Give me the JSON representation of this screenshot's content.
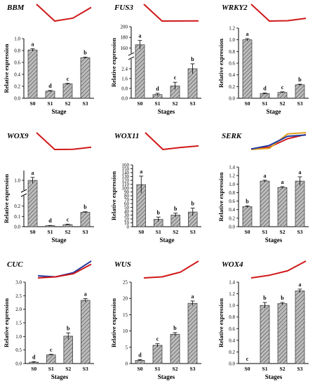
{
  "colors": {
    "trend_red": "#d01818",
    "trend_blue": "#1f3aa0",
    "trend_gold": "#e0a020",
    "bar_fill": "#8c8c8c",
    "axis": "#000000"
  },
  "chart_data": [
    {
      "type": "bar",
      "gene": "BBM",
      "xlabel": "Stage",
      "ylabel": "Relative expression",
      "categories": [
        "S0",
        "S1",
        "S2",
        "S3"
      ],
      "values": [
        0.81,
        0.12,
        0.24,
        0.68
      ],
      "errors": [
        0.02,
        0.01,
        0.01,
        0.01
      ],
      "sig": [
        "a",
        "d",
        "c",
        "b"
      ],
      "ylim": [
        0,
        1.0
      ],
      "yticks": [
        "0.0",
        "0.2",
        "0.4",
        "0.6",
        "0.8",
        "1.0"
      ],
      "trend": [
        {
          "color": "red",
          "values": [
            0.81,
            0.12,
            0.24,
            0.68
          ]
        }
      ]
    },
    {
      "type": "bar",
      "gene": "FUS3",
      "xlabel": "Stages",
      "ylabel": "Relative expression",
      "categories": [
        "S0",
        "S1",
        "S2",
        "S3"
      ],
      "values": [
        166,
        0.3,
        1.0,
        2.4
      ],
      "errors": [
        8,
        0.1,
        0.3,
        0.4
      ],
      "sig": [
        "a",
        "d",
        "c",
        "b"
      ],
      "broken_axis": true,
      "ylim_lower": [
        0,
        3.2
      ],
      "ylim_upper": [
        150,
        200
      ],
      "yticks": [
        "0.0",
        "0.8",
        "1.6",
        "2.4",
        "160",
        "180",
        "200"
      ],
      "trend": [
        {
          "color": "red",
          "values": [
            166,
            0.3,
            1.0,
            2.4
          ]
        }
      ]
    },
    {
      "type": "bar",
      "gene": "WRKY2",
      "xlabel": "Stage",
      "ylabel": "Relative expression",
      "categories": [
        "S0",
        "S1",
        "S2",
        "S3"
      ],
      "values": [
        1.0,
        0.08,
        0.1,
        0.23
      ],
      "errors": [
        0.02,
        0.01,
        0.01,
        0.01
      ],
      "sig": [
        "a",
        "d",
        "c",
        "b"
      ],
      "ylim": [
        0,
        1.2
      ],
      "yticks": [
        "0.0",
        "0.2",
        "0.4",
        "0.6",
        "0.8",
        "1.0",
        "1.2"
      ],
      "trend": [
        {
          "color": "red",
          "values": [
            1.0,
            0.08,
            0.1,
            0.23
          ]
        }
      ]
    },
    {
      "type": "bar",
      "gene": "WOX9",
      "xlabel": "Stage",
      "ylabel": "Relative expression",
      "categories": [
        "S0",
        "S1",
        "S2",
        "S3"
      ],
      "values": [
        1.0,
        0.01,
        0.02,
        0.14
      ],
      "errors": [
        0.06,
        0.002,
        0.005,
        0.005
      ],
      "sig": [
        "a",
        "d",
        "c",
        "b"
      ],
      "broken_axis": true,
      "ylim_lower": [
        0,
        0.3
      ],
      "ylim_upper": [
        0.8,
        1.2
      ],
      "yticks": [
        "0.0",
        "0.1",
        "0.2",
        "1.0"
      ],
      "trend": [
        {
          "color": "red",
          "values": [
            1.0,
            0.01,
            0.02,
            0.14
          ]
        }
      ]
    },
    {
      "type": "bar",
      "gene": "WOX11",
      "xlabel": "Stage",
      "ylabel": "Relative expression",
      "categories": [
        "S0",
        "S1",
        "S2",
        "S3"
      ],
      "values": [
        109,
        19,
        30,
        38
      ],
      "errors": [
        22,
        6,
        5,
        10
      ],
      "sig": [
        "a",
        "b",
        "b",
        "b"
      ],
      "ylim": [
        0,
        160
      ],
      "yticks": [
        "0",
        "10",
        "20",
        "30",
        "40",
        "50",
        "60",
        "70",
        "80",
        "90",
        "100",
        "110",
        "120",
        "130",
        "140",
        "150",
        "160"
      ],
      "trend": [
        {
          "color": "red",
          "values": [
            109,
            19,
            30,
            38
          ]
        }
      ]
    },
    {
      "type": "bar",
      "gene": "SERK",
      "xlabel": "Stages",
      "ylabel": "Relative expression",
      "categories": [
        "S0",
        "S1",
        "S2",
        "S3"
      ],
      "values": [
        0.47,
        1.07,
        0.92,
        1.07
      ],
      "errors": [
        0.02,
        0.02,
        0.02,
        0.1
      ],
      "sig": [
        "b",
        "a",
        "a",
        "a"
      ],
      "ylim": [
        0,
        1.4
      ],
      "yticks": [
        "0.0",
        "0.2",
        "0.4",
        "0.6",
        "0.8",
        "1.0",
        "1.2",
        "1.4"
      ],
      "trend": [
        {
          "color": "red",
          "values": [
            0.47,
            0.55,
            0.9,
            1.07
          ]
        },
        {
          "color": "gold",
          "values": [
            0.45,
            0.5,
            1.1,
            1.15
          ]
        },
        {
          "color": "blue",
          "values": [
            0.47,
            0.62,
            1.0,
            1.05
          ]
        }
      ]
    },
    {
      "type": "bar",
      "gene": "CUC",
      "xlabel": "Stages",
      "ylabel": "Relative expression",
      "categories": [
        "S0",
        "S1",
        "S2",
        "S3"
      ],
      "values": [
        0.05,
        0.32,
        1.01,
        2.33
      ],
      "errors": [
        0.02,
        0.02,
        0.12,
        0.06
      ],
      "sig": [
        "d",
        "c",
        "b",
        "a"
      ],
      "ylim": [
        0,
        3.0
      ],
      "yticks": [
        "0.0",
        "0.5",
        "1.0",
        "1.5",
        "2.0",
        "2.5",
        "3.0"
      ],
      "trend": [
        {
          "color": "blue",
          "values": [
            0.8,
            0.6,
            1.4,
            3.6
          ]
        },
        {
          "color": "red",
          "values": [
            0.4,
            0.6,
            1.2,
            3.0
          ]
        }
      ]
    },
    {
      "type": "bar",
      "gene": "WUS",
      "xlabel": "Stages",
      "ylabel": "Relative expression",
      "categories": [
        "S0",
        "S1",
        "S2",
        "S3"
      ],
      "values": [
        1.0,
        5.6,
        9.0,
        18.5
      ],
      "errors": [
        0.2,
        0.5,
        0.5,
        0.7
      ],
      "sig": [
        "d",
        "c",
        "b",
        "a"
      ],
      "ylim": [
        0,
        25
      ],
      "yticks": [
        "0",
        "5",
        "10",
        "15",
        "20",
        "25"
      ],
      "trend": [
        {
          "color": "red",
          "values": [
            2.5,
            3.5,
            8.0,
            18.5
          ]
        }
      ]
    },
    {
      "type": "bar",
      "gene": "WOX4",
      "xlabel": "Stages",
      "ylabel": "Relative expression",
      "categories": [
        "S0",
        "S1",
        "S2",
        "S3"
      ],
      "values": [
        0.0,
        1.0,
        1.03,
        1.25
      ],
      "errors": [
        0,
        0.05,
        0.02,
        0.03
      ],
      "sig": [
        "c",
        "b",
        "b",
        "a"
      ],
      "ylim": [
        0,
        1.4
      ],
      "yticks": [
        "0.0",
        "0.2",
        "0.4",
        "0.6",
        "0.8",
        "1.0",
        "1.2",
        "1.4"
      ],
      "trend": [
        {
          "color": "red",
          "values": [
            0.3,
            0.45,
            0.7,
            1.25
          ]
        }
      ]
    }
  ]
}
